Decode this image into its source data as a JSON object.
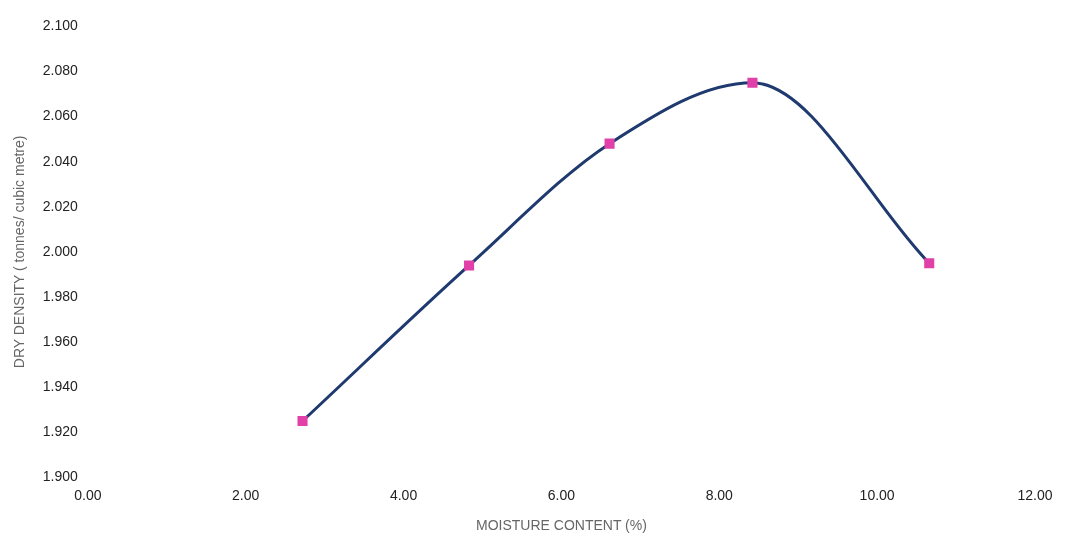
{
  "chart_data": {
    "type": "line",
    "xlabel": "MOISTURE CONTENT (%)",
    "ylabel": "DRY DENSITY ( tonnes/ cubic metre)",
    "x": [
      2.72,
      4.83,
      6.61,
      8.42,
      10.66
    ],
    "series": [
      {
        "color": "#1f3a6e",
        "values": [
          1.925,
          1.994,
          2.048,
          2.075,
          1.995
        ]
      }
    ],
    "marker": "square",
    "grid": false,
    "legend": false,
    "xlim": [
      0,
      12
    ],
    "xticks": [
      {
        "value": 0,
        "label": "0.00"
      },
      {
        "value": 2,
        "label": "2.00"
      },
      {
        "value": 4,
        "label": "4.00"
      },
      {
        "value": 6,
        "label": "6.00"
      },
      {
        "value": 8,
        "label": "8.00"
      },
      {
        "value": 10,
        "label": "10.00"
      },
      {
        "value": 12,
        "label": "12.00"
      }
    ],
    "ylim": [
      1.9,
      2.1
    ],
    "yticks": [
      {
        "value": 1.9,
        "label": "1.900"
      },
      {
        "value": 1.92,
        "label": "1.920"
      },
      {
        "value": 1.94,
        "label": "1.940"
      },
      {
        "value": 1.96,
        "label": "1.960"
      },
      {
        "value": 1.98,
        "label": "1.980"
      },
      {
        "value": 2.0,
        "label": "2.000"
      },
      {
        "value": 2.02,
        "label": "2.020"
      },
      {
        "value": 2.04,
        "label": "2.040"
      },
      {
        "value": 2.06,
        "label": "2.060"
      },
      {
        "value": 2.08,
        "label": "2.080"
      },
      {
        "value": 2.1,
        "label": "2.100"
      }
    ]
  }
}
